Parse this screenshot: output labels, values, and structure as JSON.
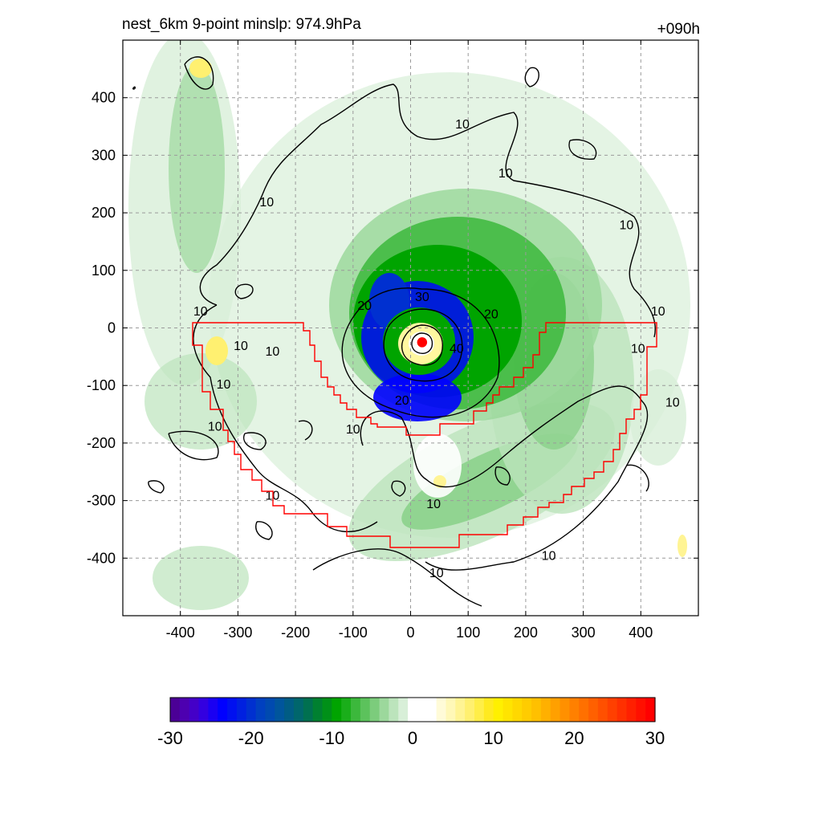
{
  "header": {
    "title_left": "nest_6km  9-point minslp: 974.9hPa",
    "title_right": "+090h"
  },
  "chart_data": {
    "type": "heatmap",
    "xlim": [
      -500,
      500
    ],
    "ylim": [
      -500,
      500
    ],
    "x_ticks": [
      -400,
      -300,
      -200,
      -100,
      0,
      100,
      200,
      300,
      400
    ],
    "y_ticks": [
      400,
      300,
      200,
      100,
      0,
      -100,
      -200,
      -300,
      -400
    ],
    "grid": true,
    "grid_style": "dashed gray",
    "storm_center": {
      "x": 20,
      "y": -25,
      "color": "#ff0000"
    },
    "contour_labels": [
      {
        "text": "10",
        "x": -250,
        "y": 220
      },
      {
        "text": "10",
        "x": 90,
        "y": 355
      },
      {
        "text": "10",
        "x": 165,
        "y": 270
      },
      {
        "text": "10",
        "x": 375,
        "y": 180
      },
      {
        "text": "10",
        "x": -365,
        "y": 30
      },
      {
        "text": "10",
        "x": -295,
        "y": -30
      },
      {
        "text": "10",
        "x": -240,
        "y": -40
      },
      {
        "text": "10",
        "x": -325,
        "y": -97
      },
      {
        "text": "10",
        "x": 430,
        "y": 30
      },
      {
        "text": "10",
        "x": 395,
        "y": -35
      },
      {
        "text": "10",
        "x": 455,
        "y": -128
      },
      {
        "text": "10",
        "x": -340,
        "y": -170
      },
      {
        "text": "10",
        "x": -100,
        "y": -175
      },
      {
        "text": "10",
        "x": -240,
        "y": -290
      },
      {
        "text": "10",
        "x": 40,
        "y": -305
      },
      {
        "text": "10",
        "x": 240,
        "y": -395
      },
      {
        "text": "10",
        "x": 45,
        "y": -425
      },
      {
        "text": "20",
        "x": -80,
        "y": 40
      },
      {
        "text": "20",
        "x": 140,
        "y": 25
      },
      {
        "text": "20",
        "x": -15,
        "y": -125
      },
      {
        "text": "30",
        "x": 20,
        "y": 55
      },
      {
        "text": "40",
        "x": 80,
        "y": -35
      }
    ],
    "colorbar": {
      "min": -30,
      "max": 30,
      "tick_labels": [
        "-30",
        "-20",
        "-10",
        "0",
        "10",
        "20",
        "30"
      ],
      "colors": [
        "#4b0096",
        "#4d00b0",
        "#4400c8",
        "#3300e0",
        "#1a00f2",
        "#0000ff",
        "#0010f0",
        "#0020e0",
        "#0030d0",
        "#0040c0",
        "#004ab0",
        "#00559c",
        "#005c84",
        "#00666c",
        "#007050",
        "#008030",
        "#009018",
        "#00a400",
        "#1aae1a",
        "#3cb83c",
        "#5cc25c",
        "#7ccc7c",
        "#9cd89c",
        "#bce4bc",
        "#d8efd8",
        "#ffffff",
        "#ffffff",
        "#ffffff",
        "#fffbd8",
        "#fff8b8",
        "#fff494",
        "#fff070",
        "#ffee48",
        "#ffea20",
        "#fff000",
        "#ffe400",
        "#ffd800",
        "#ffcc00",
        "#ffc000",
        "#ffb000",
        "#ffa000",
        "#ff9000",
        "#ff8000",
        "#ff7000",
        "#ff6000",
        "#ff5000",
        "#ff4000",
        "#ff3000",
        "#ff2000",
        "#ff1000",
        "#ff0000"
      ]
    }
  }
}
